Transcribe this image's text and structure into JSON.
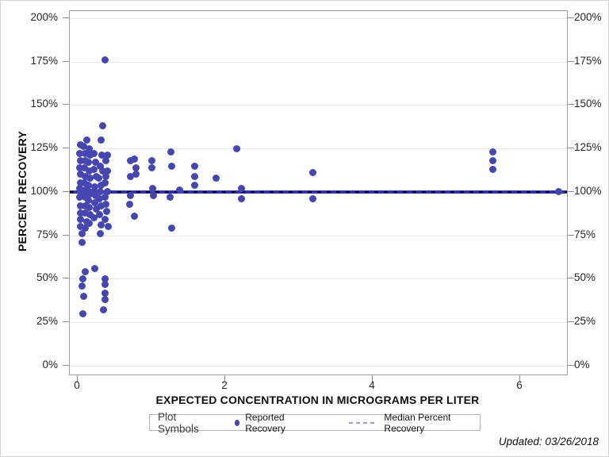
{
  "chart_data": {
    "type": "scatter",
    "title": "",
    "xlabel": "EXPECTED CONCENTRATION IN MICROGRAMS PER LITER",
    "ylabel": "PERCENT RECOVERY",
    "xlim": [
      -0.11,
      6.63
    ],
    "ylim": [
      -5,
      204
    ],
    "x_ticks": [
      0,
      2,
      4,
      6
    ],
    "y_ticks": [
      0,
      25,
      50,
      75,
      100,
      125,
      150,
      175,
      200
    ],
    "y_tick_suffix": "%",
    "grid": "horizontal",
    "legend_position": "bottom",
    "series": [
      {
        "name": "Reported Recovery",
        "type": "scatter",
        "color": "#4646b3",
        "points": [
          [
            0.03,
            127
          ],
          [
            0.02,
            122
          ],
          [
            0.04,
            118
          ],
          [
            0.02,
            114
          ],
          [
            0.03,
            110
          ],
          [
            0.03,
            105
          ],
          [
            0.02,
            102
          ],
          [
            0.03,
            100
          ],
          [
            0.02,
            97
          ],
          [
            0.03,
            92
          ],
          [
            0.03,
            88
          ],
          [
            0.04,
            84
          ],
          [
            0.04,
            80
          ],
          [
            0.12,
            130
          ],
          [
            0.08,
            126
          ],
          [
            0.1,
            122
          ],
          [
            0.1,
            118
          ],
          [
            0.09,
            114
          ],
          [
            0.1,
            109
          ],
          [
            0.09,
            105
          ],
          [
            0.1,
            101
          ],
          [
            0.08,
            100
          ],
          [
            0.1,
            97
          ],
          [
            0.1,
            92
          ],
          [
            0.1,
            88
          ],
          [
            0.12,
            83
          ],
          [
            0.1,
            79
          ],
          [
            0.06,
            76
          ],
          [
            0.06,
            71
          ],
          [
            0.15,
            125
          ],
          [
            0.16,
            121
          ],
          [
            0.14,
            117
          ],
          [
            0.15,
            112
          ],
          [
            0.16,
            108
          ],
          [
            0.14,
            104
          ],
          [
            0.15,
            100
          ],
          [
            0.16,
            99
          ],
          [
            0.14,
            95
          ],
          [
            0.15,
            91
          ],
          [
            0.16,
            87
          ],
          [
            0.15,
            82
          ],
          [
            0.22,
            122
          ],
          [
            0.24,
            117
          ],
          [
            0.22,
            113
          ],
          [
            0.25,
            109
          ],
          [
            0.23,
            103
          ],
          [
            0.22,
            100
          ],
          [
            0.24,
            98
          ],
          [
            0.23,
            94
          ],
          [
            0.25,
            90
          ],
          [
            0.22,
            85
          ],
          [
            0.34,
            138
          ],
          [
            0.31,
            130
          ],
          [
            0.33,
            121
          ],
          [
            0.3,
            115
          ],
          [
            0.34,
            112
          ],
          [
            0.28,
            108
          ],
          [
            0.31,
            104
          ],
          [
            0.3,
            100
          ],
          [
            0.29,
            96
          ],
          [
            0.31,
            92
          ],
          [
            0.29,
            87
          ],
          [
            0.31,
            81
          ],
          [
            0.3,
            76
          ],
          [
            0.37,
            176
          ],
          [
            0.4,
            121
          ],
          [
            0.38,
            118
          ],
          [
            0.4,
            112
          ],
          [
            0.38,
            109
          ],
          [
            0.37,
            105
          ],
          [
            0.4,
            100
          ],
          [
            0.37,
            97
          ],
          [
            0.38,
            93
          ],
          [
            0.39,
            89
          ],
          [
            0.37,
            84
          ],
          [
            0.41,
            80
          ],
          [
            0.71,
            118
          ],
          [
            0.77,
            119
          ],
          [
            0.79,
            114
          ],
          [
            0.71,
            109
          ],
          [
            0.79,
            110
          ],
          [
            0.71,
            98
          ],
          [
            0.7,
            93
          ],
          [
            0.77,
            86
          ],
          [
            1.0,
            118
          ],
          [
            1.0,
            114
          ],
          [
            1.01,
            102
          ],
          [
            1.02,
            98
          ],
          [
            1.26,
            123
          ],
          [
            1.27,
            115
          ],
          [
            1.25,
            97
          ],
          [
            1.27,
            79
          ],
          [
            1.38,
            101
          ],
          [
            1.58,
            115
          ],
          [
            1.58,
            109
          ],
          [
            1.58,
            104
          ],
          [
            1.87,
            108
          ],
          [
            2.15,
            125
          ],
          [
            2.22,
            102
          ],
          [
            2.22,
            96
          ],
          [
            3.18,
            111
          ],
          [
            3.18,
            96
          ],
          [
            5.62,
            123
          ],
          [
            5.62,
            118
          ],
          [
            5.62,
            113
          ],
          [
            6.52,
            100
          ],
          [
            0.23,
            56
          ],
          [
            0.1,
            54
          ],
          [
            0.07,
            50
          ],
          [
            0.37,
            50
          ],
          [
            0.37,
            47
          ],
          [
            0.06,
            46
          ],
          [
            0.37,
            42
          ],
          [
            0.08,
            40
          ],
          [
            0.37,
            38
          ],
          [
            0.35,
            32
          ],
          [
            0.07,
            30
          ]
        ]
      },
      {
        "name": "Median Percent Recovery",
        "type": "line",
        "style": "dashed",
        "color": "#3434a6",
        "dash_color": "#0a0a0a",
        "y": 100
      }
    ]
  },
  "legend": {
    "title": "Plot Symbols",
    "entries": [
      {
        "label": "Reported Recovery",
        "marker": "dot",
        "color": "#4646b3"
      },
      {
        "label": "Median Percent Recovery",
        "marker": "dashed-line",
        "color": "#9c9cce"
      }
    ]
  },
  "footer": {
    "updated_text": "Updated: 03/26/2018"
  },
  "colors": {
    "point": "#4646b3",
    "median_line": "#3434a6",
    "gridline": "#e7e7e7",
    "frame": "#9aa0a6",
    "tick_label": "#262626"
  }
}
